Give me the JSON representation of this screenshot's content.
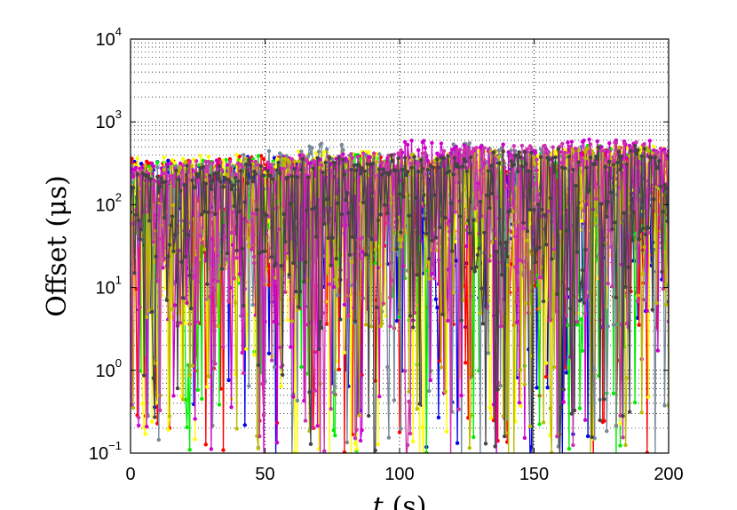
{
  "chart_data": {
    "type": "line",
    "xlabel_var": "t",
    "xlabel_unit": "(s)",
    "ylabel_text": "Offset",
    "ylabel_unit": "(μs)",
    "xlim": [
      0,
      200
    ],
    "ylim": [
      0.1,
      10000
    ],
    "yscale": "log",
    "grid": true,
    "x_ticks": [
      {
        "value": 0,
        "label": "0"
      },
      {
        "value": 50,
        "label": "50"
      },
      {
        "value": 100,
        "label": "100"
      },
      {
        "value": 150,
        "label": "150"
      },
      {
        "value": 200,
        "label": "200"
      }
    ],
    "y_ticks": [
      {
        "value": 0.1,
        "base": "10",
        "exp": "−1"
      },
      {
        "value": 1,
        "base": "10",
        "exp": "0"
      },
      {
        "value": 10,
        "base": "10",
        "exp": "1"
      },
      {
        "value": 100,
        "base": "10",
        "exp": "2"
      },
      {
        "value": 1000,
        "base": "10",
        "exp": "3"
      },
      {
        "value": 10000,
        "base": "10",
        "exp": "4"
      }
    ],
    "series_colors": [
      "#0000ee",
      "#ff0000",
      "#00ee00",
      "#ffff00",
      "#778899",
      "#cc00cc",
      "#bbbb00",
      "#cc33aa",
      "#444444"
    ],
    "sample_step_s": 0.5,
    "series": [
      {
        "color": "#0000ee",
        "values_upper_envelope": [
          350,
          300,
          380,
          320,
          360,
          300,
          340,
          330,
          370,
          310
        ]
      },
      {
        "color": "#ff0000",
        "values_upper_envelope": [
          380,
          360,
          400,
          340,
          390,
          350,
          420,
          380,
          500,
          400
        ]
      },
      {
        "color": "#00ee00",
        "values_upper_envelope": [
          330,
          350,
          400,
          360,
          430,
          380,
          460,
          420,
          520,
          450
        ]
      },
      {
        "color": "#ffff00",
        "values_upper_envelope": [
          400,
          420,
          380,
          450,
          440,
          420,
          500,
          460,
          480,
          520
        ]
      },
      {
        "color": "#778899",
        "values_upper_envelope": [
          300,
          320,
          450,
          550,
          420,
          400,
          560,
          480,
          500,
          460
        ]
      },
      {
        "color": "#cc00cc",
        "values_upper_envelope": [
          320,
          350,
          380,
          420,
          400,
          600,
          550,
          500,
          640,
          600
        ]
      },
      {
        "color": "#bbbb00",
        "values_upper_envelope": [
          300,
          330,
          360,
          380,
          400,
          420,
          440,
          460,
          480,
          500
        ]
      },
      {
        "color": "#cc33aa",
        "values_upper_envelope": [
          310,
          340,
          370,
          400,
          430,
          460,
          490,
          520,
          550,
          580
        ]
      },
      {
        "color": "#444444",
        "values_upper_envelope": [
          260,
          300,
          350,
          380,
          400,
          420,
          450,
          480,
          500,
          520
        ]
      }
    ]
  }
}
